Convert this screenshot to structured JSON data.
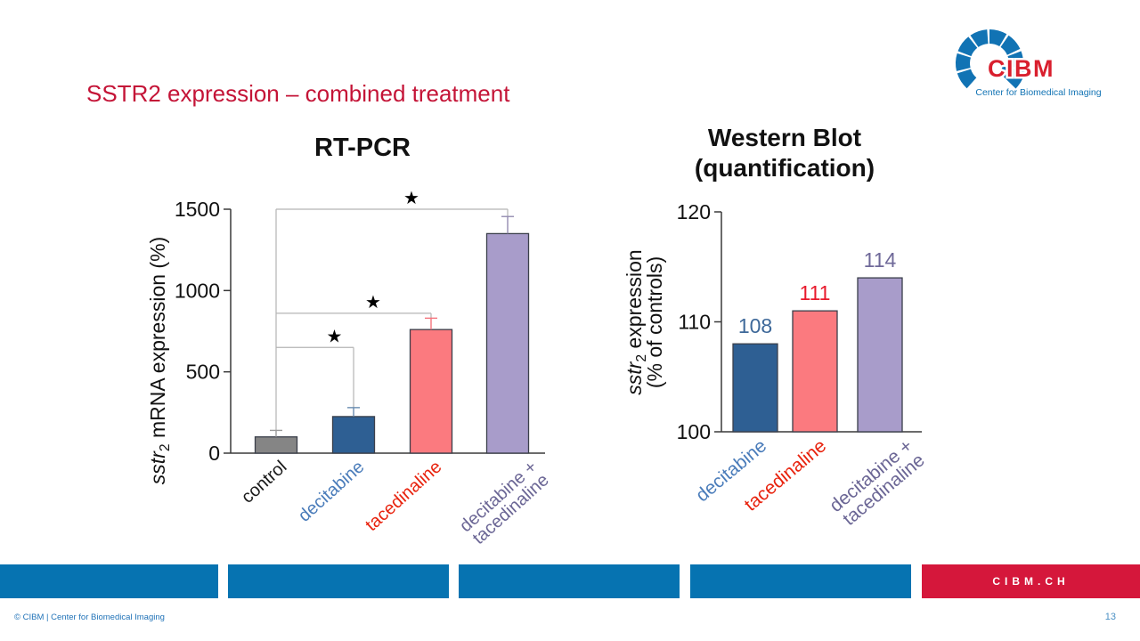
{
  "slide": {
    "title": "SSTR2 expression – combined treatment",
    "page_number": "13",
    "copyright": "© CIBM | Center for Biomedical Imaging",
    "footer_link": "CIBM.CH"
  },
  "logo": {
    "name": "CIBM",
    "subtitle": "Center for Biomedical Imaging"
  },
  "colors": {
    "title_red": "#C41437",
    "footer_blue": "#0673B1",
    "footer_red": "#D5173B",
    "logo_blue": "#1173B4",
    "logo_red": "#D91F2E",
    "copyright_blue": "#2173B8",
    "page_number_blue": "#4A90C4",
    "axis_color": "#3A3A3A",
    "bracket_gray": "#B5B5B5"
  },
  "chart_data": [
    {
      "id": "rt-pcr",
      "type": "bar",
      "title": "RT-PCR",
      "ylabel": "sstr2 mRNA expression (%)",
      "ylabel_italic": "sstr",
      "ylabel_sub": "2",
      "ylabel_rest": " mRNA expression (%)",
      "xlabel": "",
      "ylim": [
        0,
        1500
      ],
      "yticks": [
        0,
        500,
        1000,
        1500
      ],
      "grid": false,
      "legend": false,
      "categories": [
        "control",
        "decitabine",
        "tacedinaline",
        "decitabine +\ntacedinaline"
      ],
      "values": [
        100,
        225,
        760,
        1350
      ],
      "errors": [
        40,
        55,
        70,
        105
      ],
      "bar_colors": [
        "#858585",
        "#2E5F93",
        "#FB7A7F",
        "#A89CCA"
      ],
      "bar_edge_color": "#3A3F4A",
      "error_colors": [
        "#9B9B9B",
        "#6A8CB0",
        "#F4737C",
        "#938BB0"
      ],
      "category_colors": [
        "#1A1A1A",
        "#4A7CBA",
        "#E8220D",
        "#6B6695"
      ],
      "significance": [
        {
          "from": 0,
          "to": 1,
          "level": 650,
          "label": "★"
        },
        {
          "from": 0,
          "to": 2,
          "level": 860,
          "label": "★"
        },
        {
          "from": 0,
          "to": 3,
          "level": 1500,
          "label": "★"
        }
      ]
    },
    {
      "id": "western-blot",
      "type": "bar",
      "title": "Western Blot (quantification)",
      "title_lines": [
        "Western Blot",
        "(quantification)"
      ],
      "ylabel": "sstr2 expression (% of controls)",
      "ylabel_italic": "sstr",
      "ylabel_sub": "2",
      "ylabel_rest": " expression",
      "ylabel_line2": "(% of controls)",
      "xlabel": "",
      "ylim": [
        100,
        120
      ],
      "yticks": [
        100,
        110,
        120
      ],
      "grid": false,
      "legend": false,
      "categories": [
        "decitabine",
        "tacedinaline",
        "decitabine +\ntacedinaline"
      ],
      "values": [
        108,
        111,
        114
      ],
      "value_labels": [
        "108",
        "111",
        "114"
      ],
      "value_label_colors": [
        "#3D6899",
        "#E8192C",
        "#6F6999"
      ],
      "bar_colors": [
        "#2E5F93",
        "#FB7A7F",
        "#A89CCA"
      ],
      "bar_edge_color": "#3A3F4A",
      "category_colors": [
        "#4A7CBA",
        "#E8220D",
        "#6B6695"
      ]
    }
  ]
}
